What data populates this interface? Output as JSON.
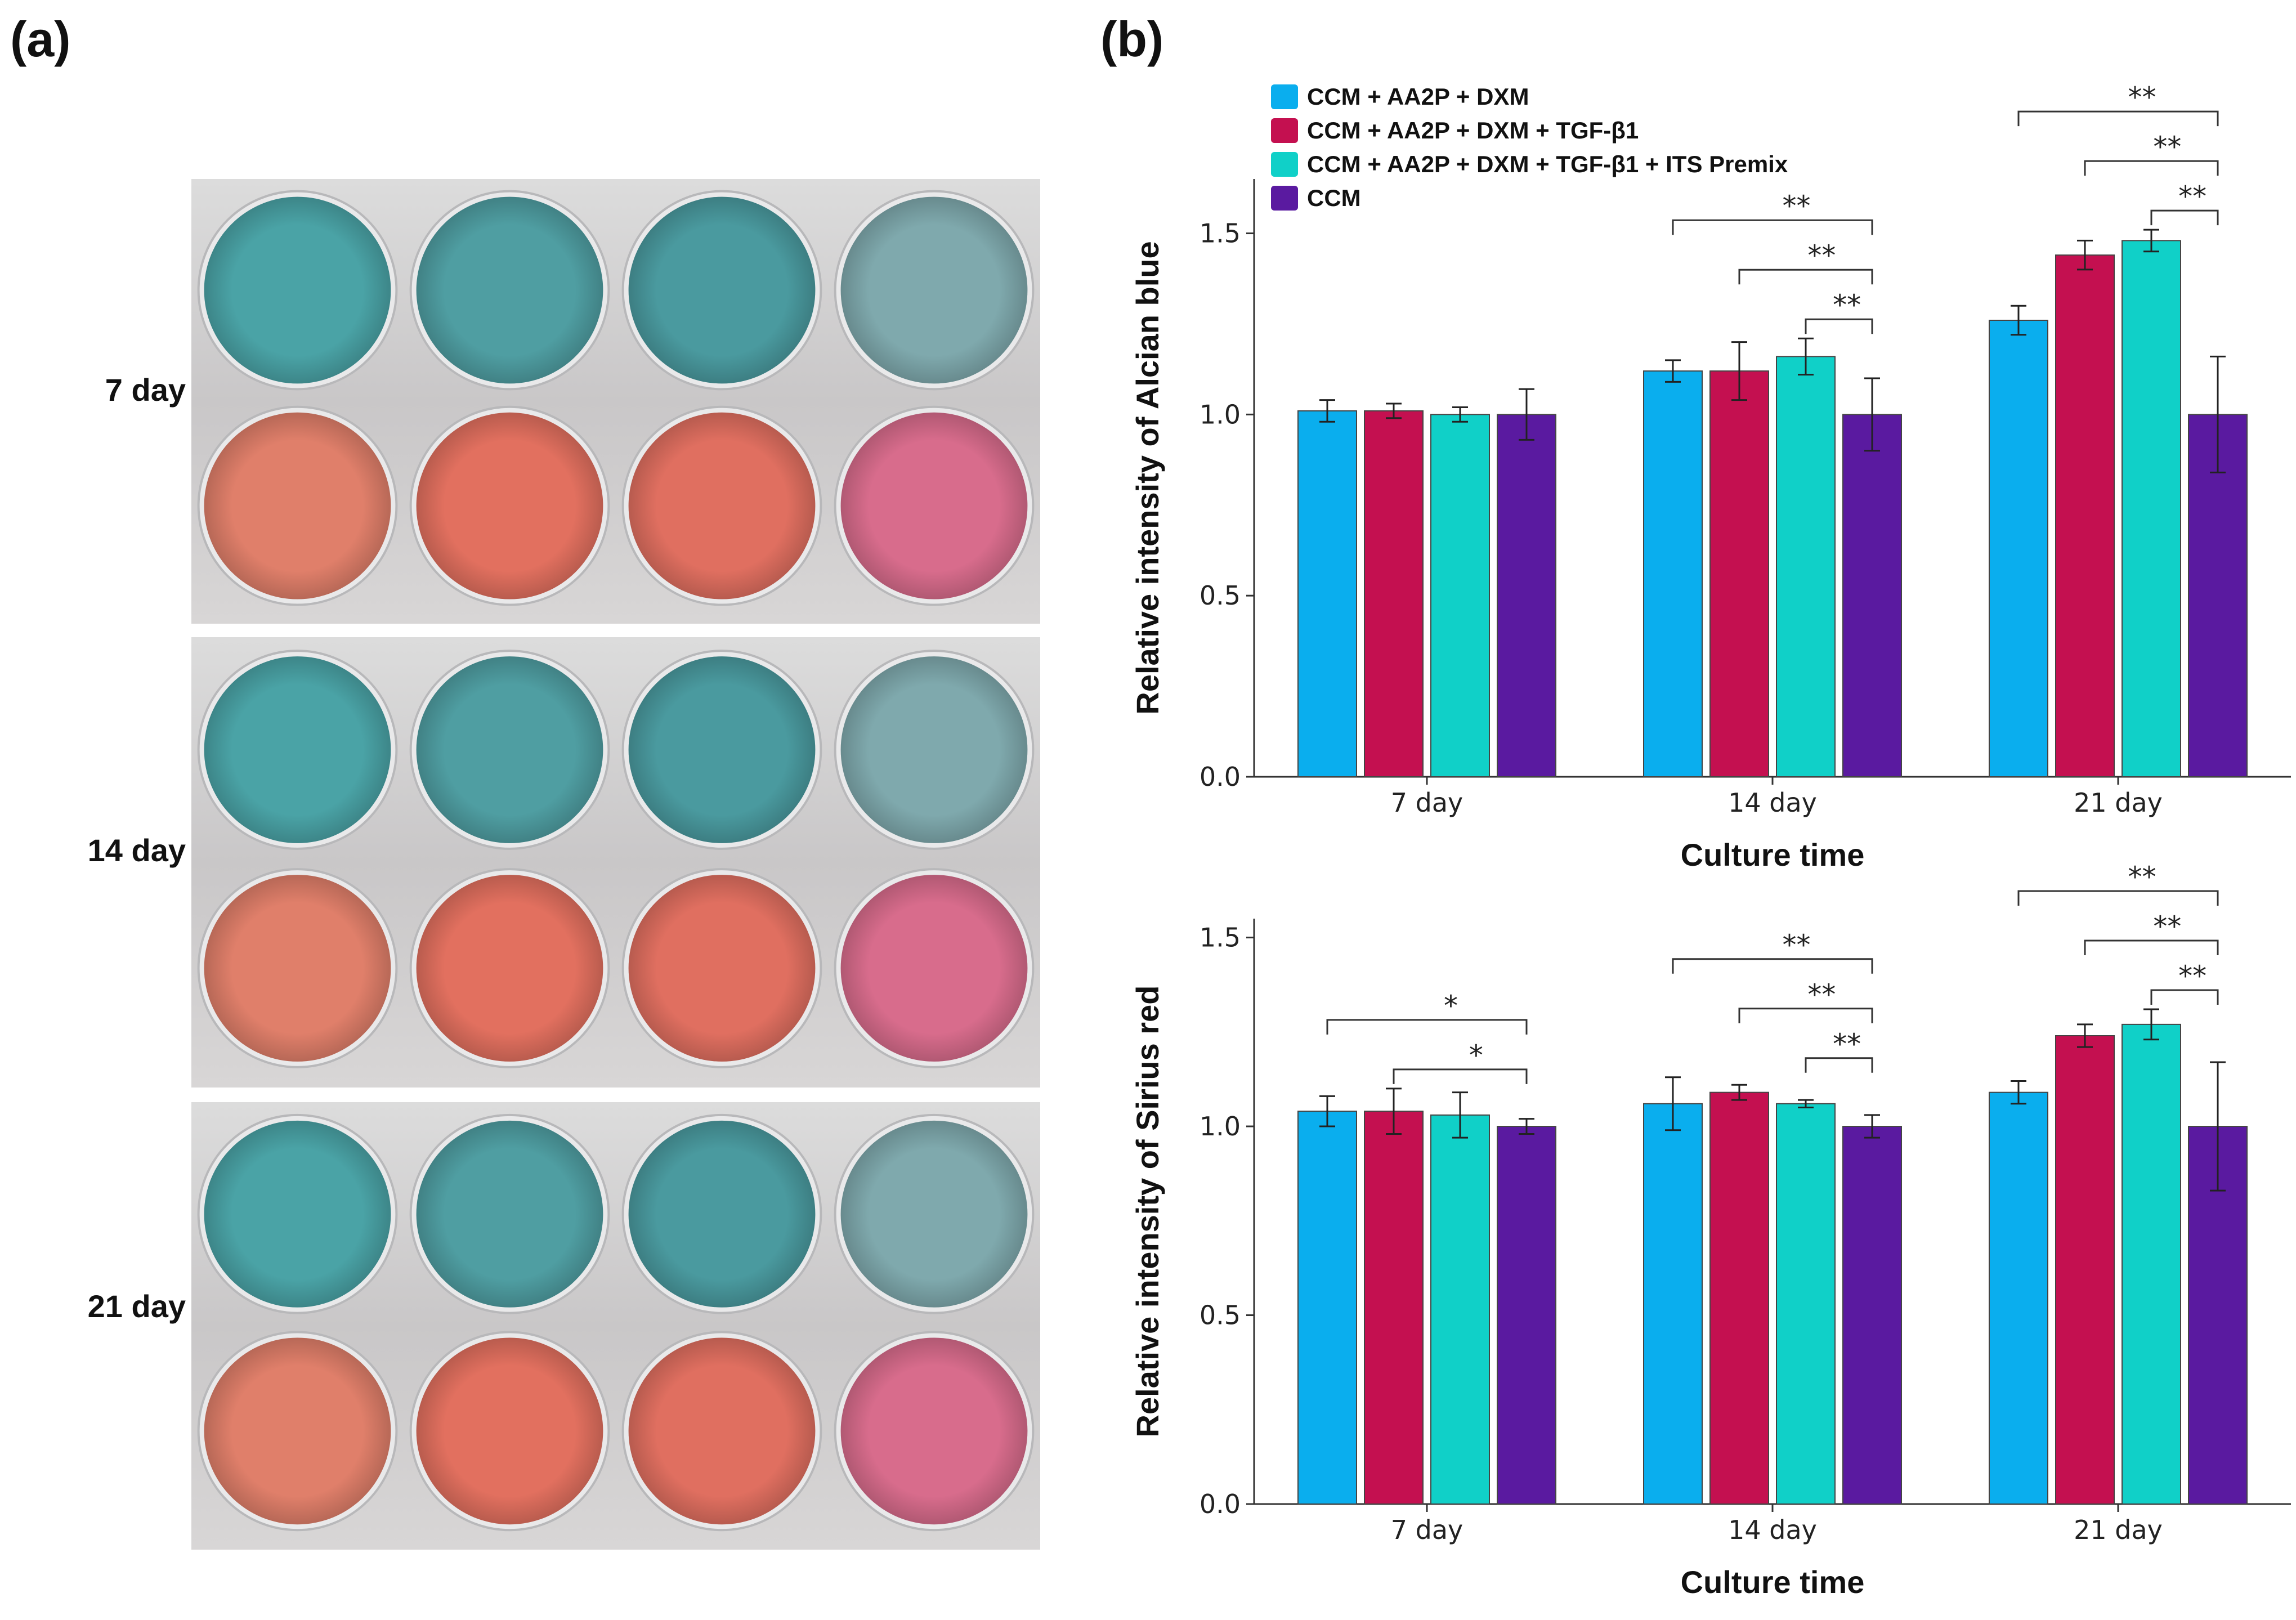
{
  "panels": {
    "a": "(a)",
    "b": "(b)"
  },
  "photo": {
    "rows": [
      "7 day",
      "14 day",
      "21 day"
    ],
    "colors": {
      "blue_wells": [
        "#4aa3a6",
        "#4f9ea2",
        "#4a9a9f",
        "#7fa9ad"
      ],
      "red_wells": [
        "#e07f6a",
        "#e2705f",
        "#e06f60",
        "#d86c8c"
      ]
    }
  },
  "legend": {
    "items": [
      {
        "label": "CCM + AA2P + DXM",
        "color": "#0aaeee"
      },
      {
        "label": "CCM + AA2P + DXM + TGF-β1",
        "color": "#c41050"
      },
      {
        "label": "CCM + AA2P + DXM + TGF-β1 + ITS Premix",
        "color": "#10d0c8"
      },
      {
        "label": "CCM",
        "color": "#5a1aa0"
      }
    ]
  },
  "chart_data": [
    {
      "type": "bar",
      "categories": [
        "7 day",
        "14 day",
        "21 day"
      ],
      "xlabel": "Culture time",
      "ylabel": "Relative intensity of Alcian blue",
      "ylim": [
        0,
        1.65
      ],
      "yticks": [
        "0.0",
        "0.5",
        "1.0",
        "1.5"
      ],
      "series": [
        {
          "name": "CCM + AA2P + DXM",
          "values": [
            1.01,
            1.12,
            1.26
          ],
          "errors": [
            0.03,
            0.03,
            0.04
          ]
        },
        {
          "name": "CCM + AA2P + DXM + TGF-β1",
          "values": [
            1.01,
            1.12,
            1.44
          ],
          "errors": [
            0.02,
            0.08,
            0.04
          ]
        },
        {
          "name": "CCM + AA2P + DXM + TGF-β1 + ITS Premix",
          "values": [
            1.0,
            1.16,
            1.48
          ],
          "errors": [
            0.02,
            0.05,
            0.03
          ]
        },
        {
          "name": "CCM",
          "values": [
            1.0,
            1.0,
            1.0
          ],
          "errors": [
            0.07,
            0.1,
            0.16
          ]
        }
      ],
      "significance": [
        {
          "group": 1,
          "from": 0,
          "to": 3,
          "label": "**"
        },
        {
          "group": 1,
          "from": 1,
          "to": 3,
          "label": "**"
        },
        {
          "group": 1,
          "from": 2,
          "to": 3,
          "label": "**"
        },
        {
          "group": 2,
          "from": 0,
          "to": 3,
          "label": "**"
        },
        {
          "group": 2,
          "from": 1,
          "to": 3,
          "label": "**"
        },
        {
          "group": 2,
          "from": 2,
          "to": 3,
          "label": "**"
        }
      ]
    },
    {
      "type": "bar",
      "categories": [
        "7 day",
        "14 day",
        "21 day"
      ],
      "xlabel": "Culture time",
      "ylabel": "Relative intensity of Sirius red",
      "ylim": [
        0,
        1.55
      ],
      "yticks": [
        "0.0",
        "0.5",
        "1.0",
        "1.5"
      ],
      "series": [
        {
          "name": "CCM + AA2P + DXM",
          "values": [
            1.04,
            1.06,
            1.09
          ],
          "errors": [
            0.04,
            0.07,
            0.03
          ]
        },
        {
          "name": "CCM + AA2P + DXM + TGF-β1",
          "values": [
            1.04,
            1.09,
            1.24
          ],
          "errors": [
            0.06,
            0.02,
            0.03
          ]
        },
        {
          "name": "CCM + AA2P + DXM + TGF-β1 + ITS Premix",
          "values": [
            1.03,
            1.06,
            1.27
          ],
          "errors": [
            0.06,
            0.01,
            0.04
          ]
        },
        {
          "name": "CCM",
          "values": [
            1.0,
            1.0,
            1.0
          ],
          "errors": [
            0.02,
            0.03,
            0.17
          ]
        }
      ],
      "significance": [
        {
          "group": 0,
          "from": 0,
          "to": 3,
          "label": "*"
        },
        {
          "group": 0,
          "from": 1,
          "to": 3,
          "label": "*"
        },
        {
          "group": 1,
          "from": 0,
          "to": 3,
          "label": "**"
        },
        {
          "group": 1,
          "from": 1,
          "to": 3,
          "label": "**"
        },
        {
          "group": 1,
          "from": 2,
          "to": 3,
          "label": "**"
        },
        {
          "group": 2,
          "from": 0,
          "to": 3,
          "label": "**"
        },
        {
          "group": 2,
          "from": 1,
          "to": 3,
          "label": "**"
        },
        {
          "group": 2,
          "from": 2,
          "to": 3,
          "label": "**"
        }
      ]
    }
  ]
}
